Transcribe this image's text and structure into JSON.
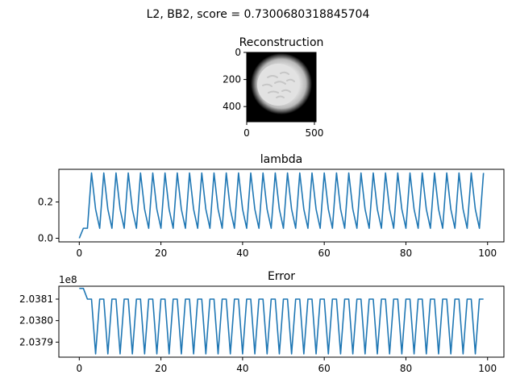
{
  "figure": {
    "suptitle": "L2, BB2, score = 0.7300680318845704"
  },
  "chart_data": [
    {
      "type": "image",
      "title": "Reconstruction",
      "xlim": [
        0,
        512
      ],
      "ylim": [
        512,
        0
      ],
      "xticks": [
        0,
        500
      ],
      "yticks": [
        0,
        200,
        400
      ],
      "content": "grayscale reconstruction: bright disk with soft glowing edge on black background"
    },
    {
      "type": "line",
      "title": "lambda",
      "xlabel": "",
      "ylabel": "",
      "xlim": [
        -5,
        104
      ],
      "ylim": [
        -0.02,
        0.38
      ],
      "xticks": [
        0,
        20,
        40,
        60,
        80,
        100
      ],
      "yticks": [
        0.0,
        0.2
      ],
      "ytick_labels": [
        "0.0",
        "0.2"
      ],
      "color": "#1f77b4",
      "pattern": {
        "start": [
          0.0,
          0.055,
          0.055
        ],
        "cycle": [
          0.36,
          0.16,
          0.055
        ],
        "n_points": 100
      }
    },
    {
      "type": "line",
      "title": "Error",
      "xlabel": "",
      "ylabel": "",
      "offset_label": "1e8",
      "xlim": [
        -5,
        104
      ],
      "ylim": [
        2.03783,
        2.03816
      ],
      "xticks": [
        0,
        20,
        40,
        60,
        80,
        100
      ],
      "yticks": [
        2.0379,
        2.038,
        2.0381
      ],
      "ytick_labels": [
        "2.0379",
        "2.0380",
        "2.0381"
      ],
      "color": "#1f77b4",
      "pattern": {
        "start": [
          2.03815,
          2.03815,
          2.0381,
          2.0381
        ],
        "cycle": [
          2.037845,
          2.0381,
          2.0381
        ],
        "n_points": 100
      }
    }
  ]
}
